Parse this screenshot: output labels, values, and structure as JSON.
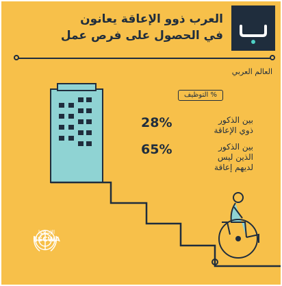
{
  "title": {
    "line1": "العرب ذوو الإعاقة يعانون",
    "line2": "في الحصول على فرص عمل"
  },
  "brand": {
    "icon": "letter-ba-logo-icon",
    "color": "#1f2d3d"
  },
  "category": "العالم العربي",
  "employment_pill": "% التوظيف",
  "stats": [
    {
      "value": "28%",
      "label_line1": "بين الذكور",
      "label_line2": "ذوي الإعاقة"
    },
    {
      "value": "65%",
      "label_line1": "بين الذكور",
      "label_line2": "الذين ليس",
      "label_line3": "لديهم إعاقة"
    }
  ],
  "logo": {
    "arabic": "الإسكوا",
    "english": "ESCWA",
    "icon": "un-emblem-icon"
  },
  "colors": {
    "background": "#f7c04a",
    "ink": "#1f2d3d",
    "building": "#8fd3d3"
  }
}
